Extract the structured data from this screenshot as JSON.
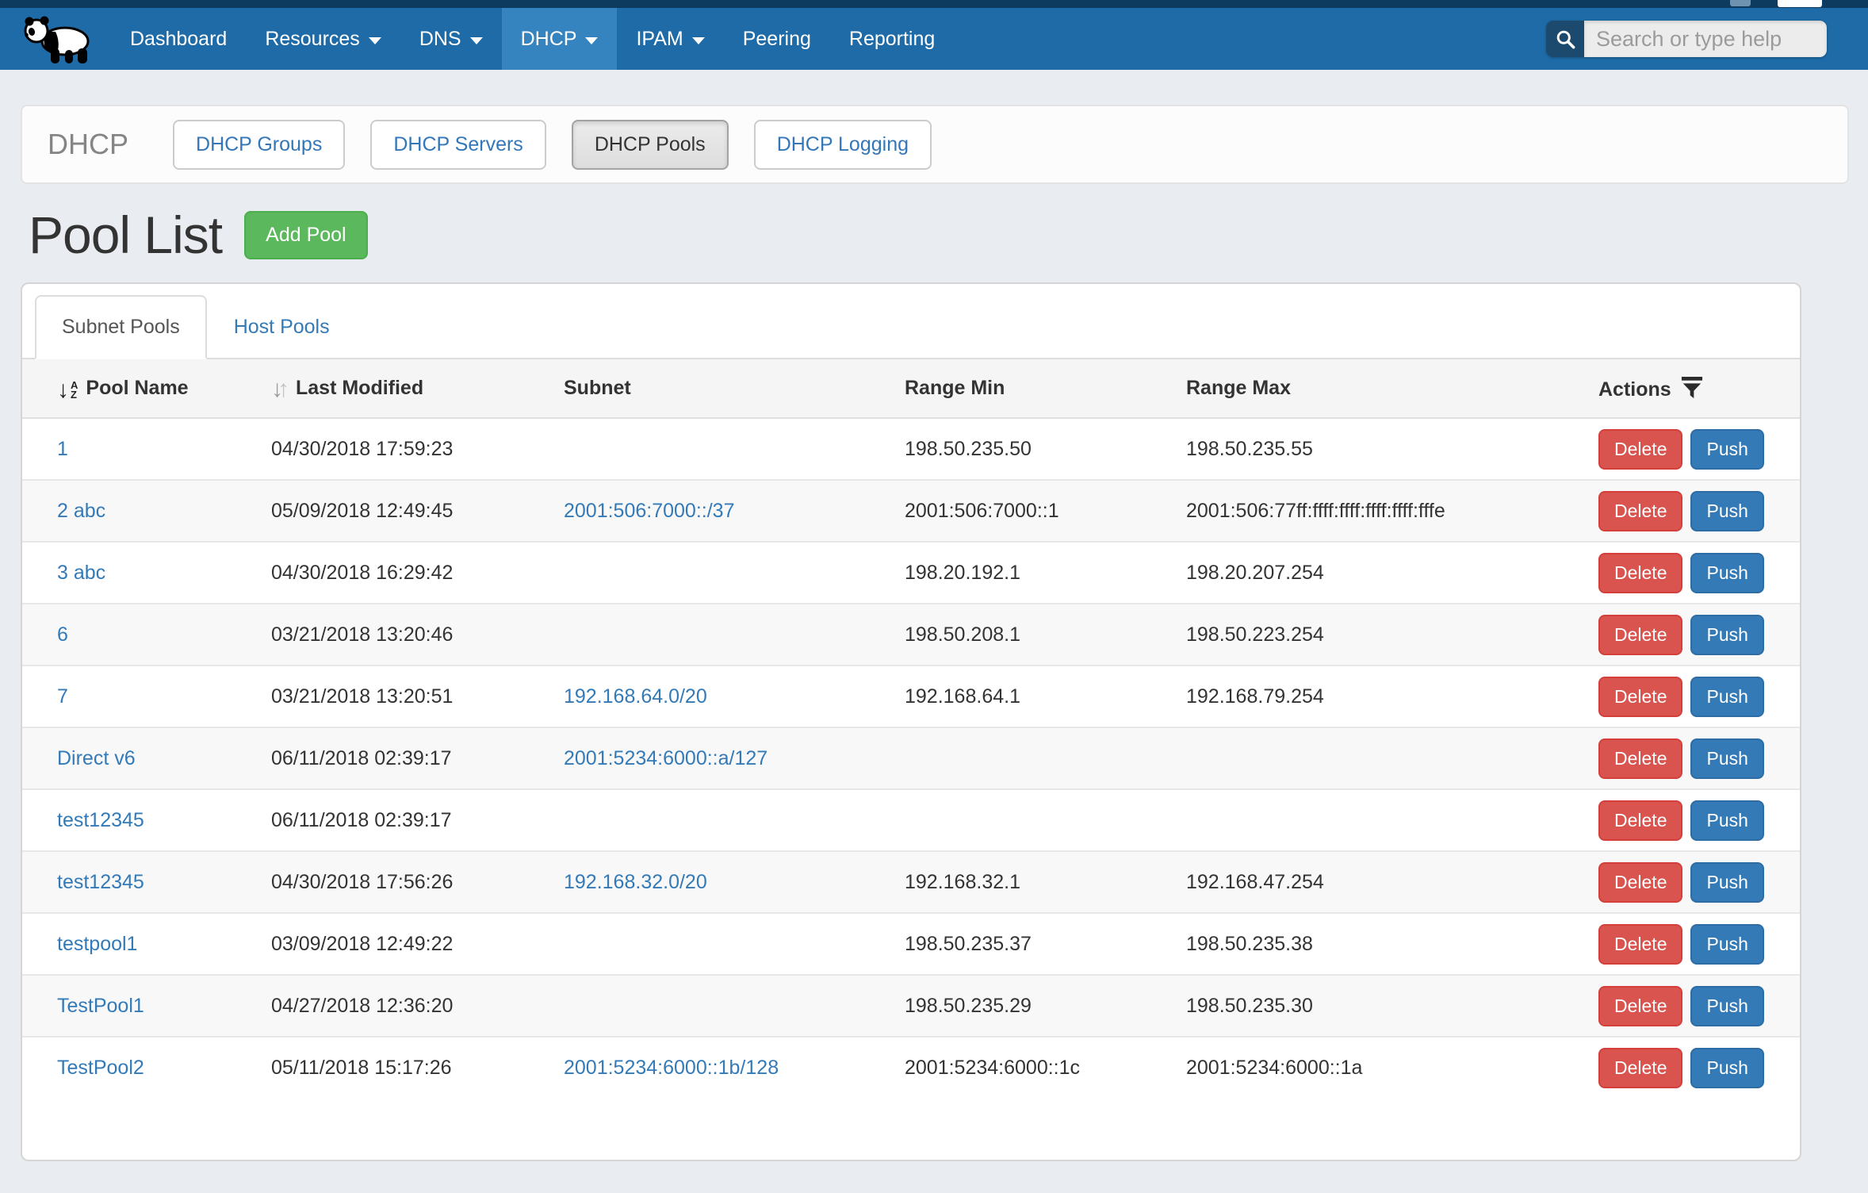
{
  "navbar": {
    "items": [
      {
        "label": "Dashboard",
        "caret": false,
        "active": false
      },
      {
        "label": "Resources",
        "caret": true,
        "active": false
      },
      {
        "label": "DNS",
        "caret": true,
        "active": false
      },
      {
        "label": "DHCP",
        "caret": true,
        "active": true
      },
      {
        "label": "IPAM",
        "caret": true,
        "active": false
      },
      {
        "label": "Peering",
        "caret": false,
        "active": false
      },
      {
        "label": "Reporting",
        "caret": false,
        "active": false
      }
    ],
    "search": {
      "placeholder": "Search or type help",
      "value": ""
    }
  },
  "toolbar": {
    "title": "DHCP",
    "buttons": [
      {
        "label": "DHCP Groups",
        "active": false
      },
      {
        "label": "DHCP Servers",
        "active": false
      },
      {
        "label": "DHCP Pools",
        "active": true
      },
      {
        "label": "DHCP Logging",
        "active": false
      }
    ]
  },
  "page": {
    "title": "Pool List",
    "add_button_label": "Add Pool"
  },
  "tabs": [
    {
      "label": "Subnet Pools",
      "active": true
    },
    {
      "label": "Host Pools",
      "active": false
    }
  ],
  "table": {
    "headers": {
      "pool_name": "Pool Name",
      "last_modified": "Last Modified",
      "subnet": "Subnet",
      "range_min": "Range Min",
      "range_max": "Range Max",
      "actions": "Actions"
    },
    "actions": {
      "delete": "Delete",
      "push": "Push"
    },
    "rows": [
      {
        "name": "1",
        "modified": "04/30/2018 17:59:23",
        "subnet": "",
        "range_min": "198.50.235.50",
        "range_max": "198.50.235.55"
      },
      {
        "name": "2 abc",
        "modified": "05/09/2018 12:49:45",
        "subnet": "2001:506:7000::/37",
        "range_min": "2001:506:7000::1",
        "range_max": "2001:506:77ff:ffff:ffff:ffff:ffff:fffe"
      },
      {
        "name": "3 abc",
        "modified": "04/30/2018 16:29:42",
        "subnet": "",
        "range_min": "198.20.192.1",
        "range_max": "198.20.207.254"
      },
      {
        "name": "6",
        "modified": "03/21/2018 13:20:46",
        "subnet": "",
        "range_min": "198.50.208.1",
        "range_max": "198.50.223.254"
      },
      {
        "name": "7",
        "modified": "03/21/2018 13:20:51",
        "subnet": "192.168.64.0/20",
        "range_min": "192.168.64.1",
        "range_max": "192.168.79.254"
      },
      {
        "name": "Direct v6",
        "modified": "06/11/2018 02:39:17",
        "subnet": "2001:5234:6000::a/127",
        "range_min": "",
        "range_max": ""
      },
      {
        "name": "test12345",
        "modified": "06/11/2018 02:39:17",
        "subnet": "",
        "range_min": "",
        "range_max": ""
      },
      {
        "name": "test12345",
        "modified": "04/30/2018 17:56:26",
        "subnet": "192.168.32.0/20",
        "range_min": "192.168.32.1",
        "range_max": "192.168.47.254"
      },
      {
        "name": "testpool1",
        "modified": "03/09/2018 12:49:22",
        "subnet": "",
        "range_min": "198.50.235.37",
        "range_max": "198.50.235.38"
      },
      {
        "name": "TestPool1",
        "modified": "04/27/2018 12:36:20",
        "subnet": "",
        "range_min": "198.50.235.29",
        "range_max": "198.50.235.30"
      },
      {
        "name": "TestPool2",
        "modified": "05/11/2018 15:17:26",
        "subnet": "2001:5234:6000::1b/128",
        "range_min": "2001:5234:6000::1c",
        "range_max": "2001:5234:6000::1a"
      }
    ]
  },
  "icons": {
    "logo": "panda-logo-icon",
    "search": "search-icon",
    "sort_alpha": "sort-alpha-asc-icon",
    "sort": "sort-icon",
    "filter": "filter-icon",
    "caret": "caret-down-icon"
  },
  "colors": {
    "top_strip": "#0d3a5f",
    "navbar_bg": "#1e6ba7",
    "navbar_active_bg": "#3584c0",
    "link": "#337ab7",
    "add_button": "#5cb85c",
    "delete_button": "#d9534f",
    "push_button": "#337ab7",
    "page_bg": "#e9edf1"
  }
}
